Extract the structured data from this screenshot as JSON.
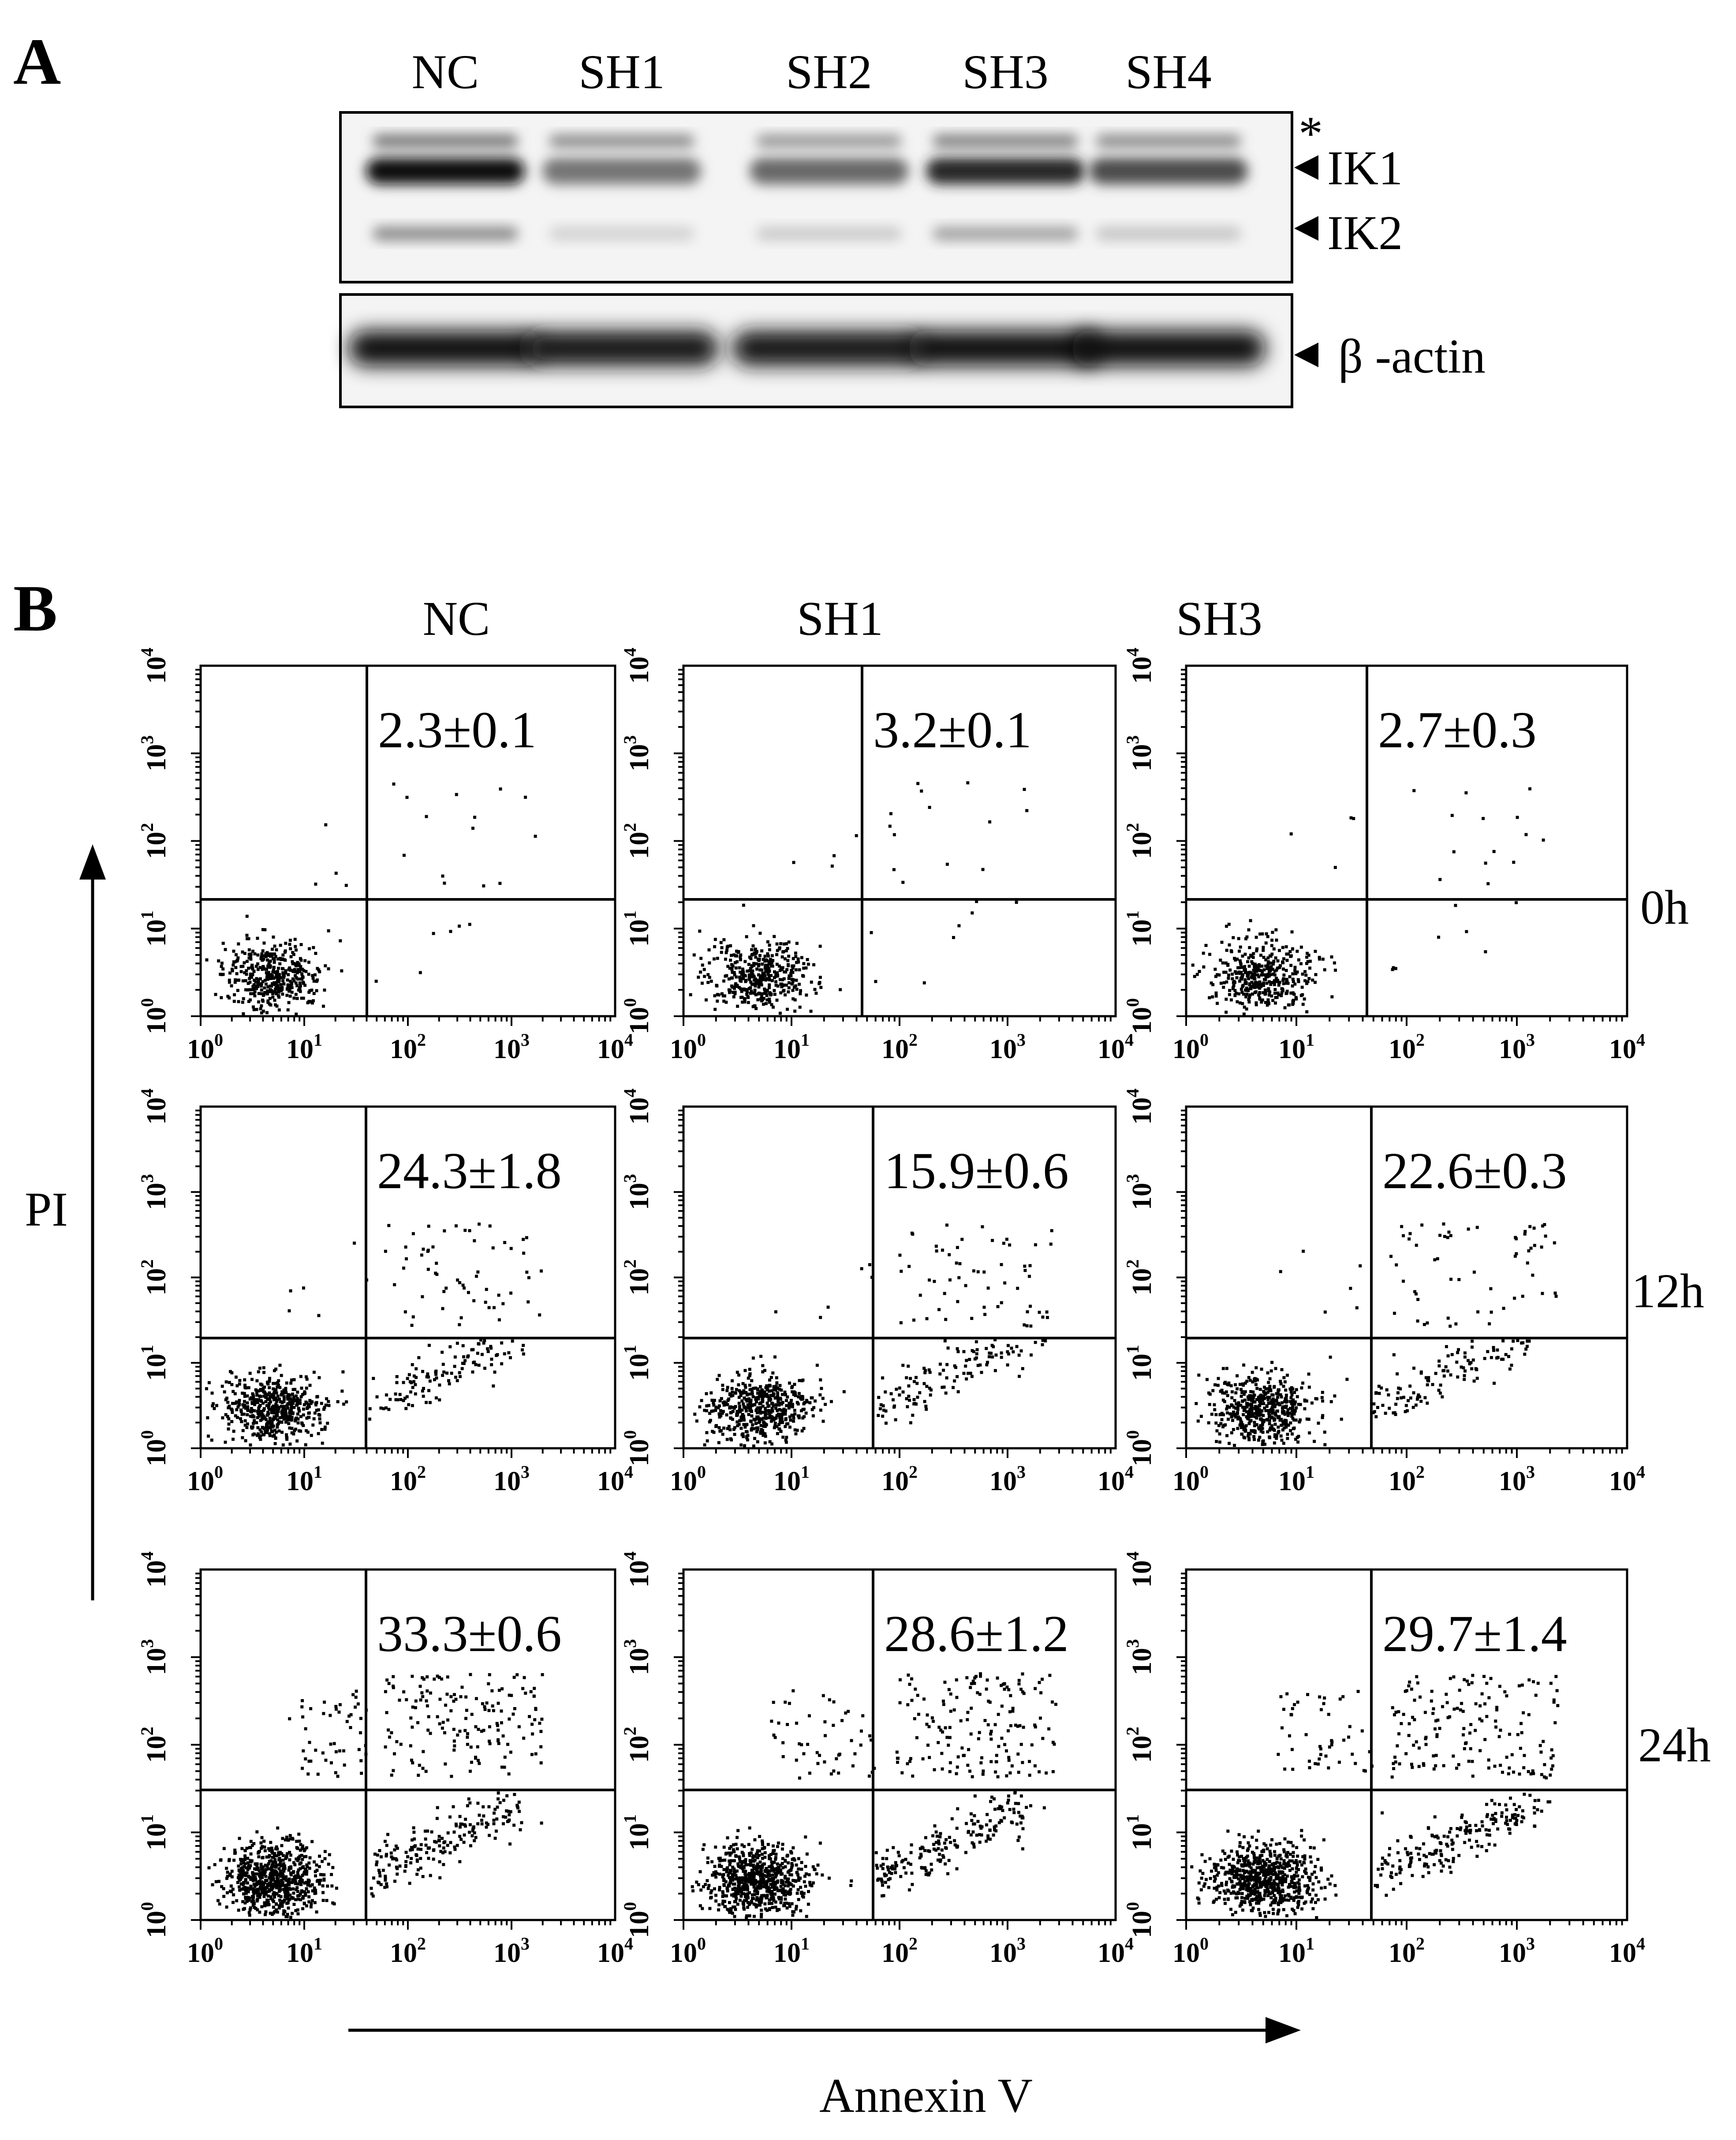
{
  "figure": {
    "panel_a": {
      "letter": "A",
      "lanes": [
        "NC",
        "SH1",
        "SH2",
        "SH3",
        "SH4"
      ],
      "band_labels": {
        "nonspecific": "*",
        "ik1": "IK1",
        "ik2": "IK2",
        "actin": "β -actin"
      },
      "ik1_intensity": [
        1.0,
        0.55,
        0.6,
        0.88,
        0.72
      ],
      "ik2_intensity": [
        0.45,
        0.15,
        0.18,
        0.35,
        0.2
      ],
      "top_band_intensity": [
        0.55,
        0.45,
        0.4,
        0.5,
        0.45
      ],
      "actin_intensity": [
        1.0,
        0.95,
        0.95,
        1.0,
        1.0
      ]
    },
    "panel_b": {
      "letter": "B",
      "column_labels": [
        "NC",
        "SH1",
        "SH3"
      ],
      "row_labels": [
        "0h",
        "12h",
        "24h"
      ],
      "y_axis_label": "PI",
      "x_axis_label": "Annexin V",
      "tick_base": "10",
      "tick_exponents": [
        "0",
        "1",
        "2",
        "3",
        "4"
      ],
      "plots": [
        [
          {
            "value": "2.3±0.1"
          },
          {
            "value": "3.2±0.1"
          },
          {
            "value": "2.7±0.3"
          }
        ],
        [
          {
            "value": "24.3±1.8"
          },
          {
            "value": "15.9±0.6"
          },
          {
            "value": "22.6±0.3"
          }
        ],
        [
          {
            "value": "33.3±0.6"
          },
          {
            "value": "28.6±1.2"
          },
          {
            "value": "29.7±1.4"
          }
        ]
      ]
    }
  }
}
